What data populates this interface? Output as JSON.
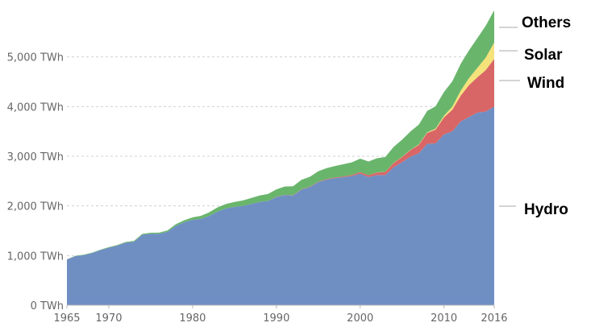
{
  "chart_data": {
    "type": "area",
    "stacked": true,
    "x": [
      1965,
      1966,
      1967,
      1968,
      1969,
      1970,
      1971,
      1972,
      1973,
      1974,
      1975,
      1976,
      1977,
      1978,
      1979,
      1980,
      1981,
      1982,
      1983,
      1984,
      1985,
      1986,
      1987,
      1988,
      1989,
      1990,
      1991,
      1992,
      1993,
      1994,
      1995,
      1996,
      1997,
      1998,
      1999,
      2000,
      2001,
      2002,
      2003,
      2004,
      2005,
      2006,
      2007,
      2008,
      2009,
      2010,
      2011,
      2012,
      2013,
      2014,
      2015,
      2016
    ],
    "series": [
      {
        "name": "Hydro",
        "color": "#6f8fc3",
        "values": [
          920,
          990,
          1010,
          1050,
          1110,
          1160,
          1200,
          1260,
          1280,
          1420,
          1440,
          1440,
          1480,
          1600,
          1670,
          1720,
          1740,
          1800,
          1890,
          1950,
          1980,
          2000,
          2040,
          2080,
          2100,
          2180,
          2220,
          2210,
          2330,
          2380,
          2480,
          2530,
          2560,
          2580,
          2600,
          2650,
          2580,
          2620,
          2620,
          2780,
          2880,
          2990,
          3060,
          3250,
          3260,
          3440,
          3500,
          3700,
          3790,
          3880,
          3900,
          4000
        ]
      },
      {
        "name": "Wind",
        "color": "#d96666",
        "values": [
          0,
          0,
          0,
          0,
          0,
          0,
          0,
          0,
          0,
          0,
          0,
          0,
          0,
          0,
          0,
          0,
          0,
          0,
          0,
          0,
          0,
          0,
          0,
          0,
          0,
          4,
          4,
          5,
          6,
          7,
          8,
          10,
          12,
          15,
          21,
          31,
          38,
          52,
          63,
          85,
          104,
          133,
          170,
          220,
          276,
          342,
          437,
          521,
          646,
          712,
          838,
          960
        ]
      },
      {
        "name": "Solar",
        "color": "#f5e27a",
        "values": [
          0,
          0,
          0,
          0,
          0,
          0,
          0,
          0,
          0,
          0,
          0,
          0,
          0,
          0,
          0,
          0,
          0,
          0,
          0,
          0,
          0,
          0,
          0,
          0,
          0,
          0,
          0,
          0,
          0,
          0,
          0,
          0,
          0,
          0,
          0,
          1,
          1,
          2,
          2,
          3,
          4,
          5,
          7,
          12,
          20,
          32,
          62,
          99,
          139,
          190,
          253,
          330
        ]
      },
      {
        "name": "Others",
        "color": "#69b56c",
        "values": [
          5,
          6,
          7,
          8,
          9,
          10,
          12,
          14,
          16,
          18,
          20,
          22,
          26,
          32,
          40,
          50,
          60,
          72,
          82,
          90,
          100,
          110,
          118,
          130,
          140,
          150,
          165,
          180,
          190,
          200,
          210,
          220,
          232,
          245,
          255,
          270,
          275,
          285,
          300,
          320,
          345,
          370,
          400,
          430,
          450,
          480,
          510,
          540,
          560,
          600,
          640,
          650
        ]
      }
    ],
    "ylim": [
      0,
      6000
    ],
    "y_ticks": [
      0,
      1000,
      2000,
      3000,
      4000,
      5000
    ],
    "y_tick_labels": [
      "0 TWh",
      "1,000 TWh",
      "2,000 TWh",
      "3,000 TWh",
      "4,000 TWh",
      "5,000 TWh"
    ],
    "x_ticks": [
      1965,
      1970,
      1980,
      1990,
      2000,
      2010,
      2016
    ],
    "x_tick_labels": [
      "1965",
      "1970",
      "1980",
      "1990",
      "2000",
      "2010",
      "2016"
    ],
    "grid": true,
    "legend_placement": "right, inline at series ends"
  },
  "legend": {
    "others": "Others",
    "solar": "Solar",
    "wind": "Wind",
    "hydro": "Hydro"
  }
}
